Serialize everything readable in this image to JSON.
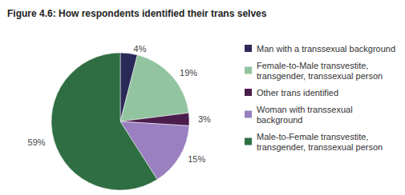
{
  "chart_data": {
    "type": "pie",
    "title": "Figure 4.6: How respondents identified their trans selves",
    "categories": [
      "Man with a transsexual background",
      "Female-to-Male transvestite, transgender, transsexual person",
      "Other trans identified",
      "Woman with transsexual background",
      "Male-to-Female transvestite, transgender, transsexual person"
    ],
    "values": [
      4,
      19,
      3,
      15,
      59
    ],
    "value_labels": [
      "4%",
      "19%",
      "3%",
      "15%",
      "59%"
    ],
    "colors": [
      "#2b2958",
      "#92c4a0",
      "#4b1d4d",
      "#9a80c0",
      "#2f6e42"
    ],
    "data_labels": true,
    "legend": "right"
  }
}
